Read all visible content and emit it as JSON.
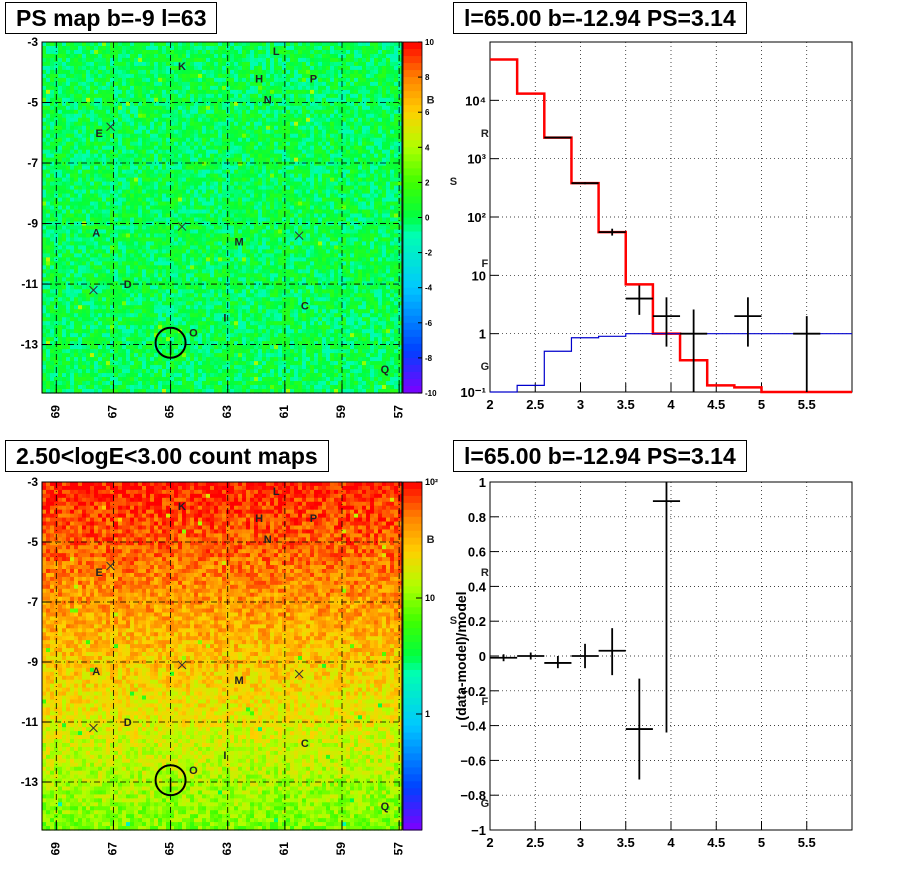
{
  "panels": {
    "ps_map": {
      "title": "PS map b=-9 l=63"
    },
    "spectrum": {
      "title": "l=65.00 b=-12.94 PS=3.14"
    },
    "count_map": {
      "title": "2.50<logE<3.00 count maps"
    },
    "residual": {
      "title": "l=65.00 b=-12.94 PS=3.14"
    }
  },
  "maps": {
    "x_ticks": [
      "69",
      "67",
      "65",
      "63",
      "61",
      "59",
      "57"
    ],
    "y_ticks": [
      "-3",
      "-5",
      "-7",
      "-9",
      "-11",
      "-13"
    ],
    "sources": [
      {
        "label": "K",
        "l": 64.6,
        "b": -3.8
      },
      {
        "label": "L",
        "l": 61.3,
        "b": -3.3
      },
      {
        "label": "H",
        "l": 61.9,
        "b": -4.2
      },
      {
        "label": "P",
        "l": 60.0,
        "b": -4.2
      },
      {
        "label": "N",
        "l": 61.6,
        "b": -4.9
      },
      {
        "label": "B",
        "l": 55.9,
        "b": -4.9
      },
      {
        "label": "E",
        "l": 67.5,
        "b": -6.0
      },
      {
        "label": "R",
        "l": 54.0,
        "b": -6.0
      },
      {
        "label": "S",
        "l": 55.1,
        "b": -7.6
      },
      {
        "label": "A",
        "l": 67.6,
        "b": -9.3
      },
      {
        "label": "M",
        "l": 62.6,
        "b": -9.6
      },
      {
        "label": "F",
        "l": 54.0,
        "b": -10.3
      },
      {
        "label": "D",
        "l": 66.5,
        "b": -11.0
      },
      {
        "label": "C",
        "l": 60.3,
        "b": -11.7
      },
      {
        "label": "I",
        "l": 63.1,
        "b": -12.1
      },
      {
        "label": "O",
        "l": 64.2,
        "b": -12.6
      },
      {
        "label": "G",
        "l": 54.0,
        "b": -13.7
      },
      {
        "label": "Q",
        "l": 57.5,
        "b": -13.8
      }
    ],
    "crosses": [
      {
        "l": 67.1,
        "b": -5.8
      },
      {
        "l": 64.6,
        "b": -9.1
      },
      {
        "l": 60.5,
        "b": -9.4
      },
      {
        "l": 67.7,
        "b": -11.2
      }
    ]
  },
  "colorbars": {
    "ps_ticks": [
      "10",
      "8",
      "6",
      "4",
      "2",
      "0",
      "-2",
      "-4",
      "-6",
      "-8",
      "-10"
    ],
    "count_ticks": [
      "10²",
      "10",
      "1"
    ]
  },
  "chart_data": [
    {
      "type": "heatmap",
      "xlabel": "",
      "ylabel": "",
      "xlim": [
        69.5,
        56.9
      ],
      "ylim": [
        -14.6,
        -3.0
      ],
      "zlim": [
        -10,
        10
      ],
      "grid": true
    },
    {
      "type": "line",
      "xlabel": "",
      "ylabel": "",
      "xlim": [
        2,
        6
      ],
      "ylim": [
        0.1,
        100000
      ],
      "ylog": true,
      "x_tick_labels": [
        "2",
        "2.5",
        "3",
        "3.5",
        "4",
        "4.5",
        "5",
        "5.5"
      ],
      "y_tick_labels": [
        "10⁻¹",
        "1",
        "10",
        "10²",
        "10³",
        "10⁴"
      ],
      "grid": true,
      "series": [
        {
          "color": "#ff0000",
          "bins": [
            [
              2.0,
              2.3,
              50000
            ],
            [
              2.3,
              2.6,
              13000
            ],
            [
              2.6,
              2.9,
              2300
            ],
            [
              2.9,
              3.2,
              380
            ],
            [
              3.2,
              3.5,
              55
            ],
            [
              3.5,
              3.8,
              7
            ],
            [
              3.8,
              4.1,
              1.0
            ],
            [
              4.1,
              4.4,
              0.35
            ],
            [
              4.4,
              4.7,
              0.13
            ],
            [
              4.7,
              5.0,
              0.12
            ],
            [
              5.0,
              6.0,
              0.1
            ]
          ]
        },
        {
          "color": "#0000cc",
          "bins": [
            [
              2.0,
              2.3,
              0.1
            ],
            [
              2.3,
              2.6,
              0.13
            ],
            [
              2.6,
              2.9,
              0.5
            ],
            [
              2.9,
              3.2,
              0.85
            ],
            [
              3.2,
              3.5,
              0.9
            ],
            [
              3.5,
              3.8,
              1.0
            ],
            [
              3.8,
              4.1,
              1.0
            ],
            [
              4.1,
              6.0,
              1.0
            ]
          ]
        },
        {
          "color": "#000000",
          "points": [
            {
              "x": 2.75,
              "y": 2300,
              "xerr": 0.15,
              "ylo": 2250,
              "yhi": 2350
            },
            {
              "x": 3.05,
              "y": 380,
              "xerr": 0.15,
              "ylo": 365,
              "yhi": 395
            },
            {
              "x": 3.35,
              "y": 55,
              "xerr": 0.15,
              "ylo": 48,
              "yhi": 63
            },
            {
              "x": 3.65,
              "y": 4,
              "xerr": 0.15,
              "ylo": 2.1,
              "yhi": 6.7
            },
            {
              "x": 3.95,
              "y": 2,
              "xerr": 0.15,
              "ylo": 0.6,
              "yhi": 4.2
            },
            {
              "x": 4.25,
              "y": 1,
              "xerr": 0.15,
              "ylo": 0.1,
              "yhi": 2.6
            },
            {
              "x": 4.85,
              "y": 2,
              "xerr": 0.15,
              "ylo": 0.6,
              "yhi": 4.2
            },
            {
              "x": 5.5,
              "y": 1,
              "xerr": 0.15,
              "ylo": 0.1,
              "yhi": 2.0
            }
          ]
        }
      ]
    },
    {
      "type": "heatmap",
      "xlabel": "",
      "ylabel": "",
      "xlim": [
        69.5,
        56.9
      ],
      "ylim": [
        -14.6,
        -3.0
      ],
      "zlim": [
        0.1,
        100
      ],
      "zlog": true,
      "grid": true
    },
    {
      "type": "scatter",
      "xlabel": "",
      "ylabel": "(data-model)/model",
      "xlim": [
        2,
        6
      ],
      "ylim": [
        -1,
        1
      ],
      "x_tick_labels": [
        "2",
        "2.5",
        "3",
        "3.5",
        "4",
        "4.5",
        "5",
        "5.5"
      ],
      "y_tick_labels": [
        "1",
        "0.8",
        "0.6",
        "0.4",
        "0.2",
        "0",
        "−0.2",
        "−0.4",
        "−0.6",
        "−0.8",
        "−1"
      ],
      "grid": true,
      "points": [
        {
          "x": 2.15,
          "y": -0.01,
          "xerr": 0.15,
          "ylo": -0.03,
          "yhi": 0.01
        },
        {
          "x": 2.45,
          "y": 0.0,
          "xerr": 0.15,
          "ylo": -0.02,
          "yhi": 0.02
        },
        {
          "x": 2.75,
          "y": -0.04,
          "xerr": 0.15,
          "ylo": -0.07,
          "yhi": 0.0
        },
        {
          "x": 3.05,
          "y": 0.0,
          "xerr": 0.15,
          "ylo": -0.07,
          "yhi": 0.07
        },
        {
          "x": 3.35,
          "y": 0.03,
          "xerr": 0.15,
          "ylo": -0.11,
          "yhi": 0.16
        },
        {
          "x": 3.65,
          "y": -0.42,
          "xerr": 0.15,
          "ylo": -0.71,
          "yhi": -0.13
        },
        {
          "x": 3.95,
          "y": 0.89,
          "xerr": 0.15,
          "ylo": -0.44,
          "yhi": 1.0
        }
      ]
    }
  ]
}
